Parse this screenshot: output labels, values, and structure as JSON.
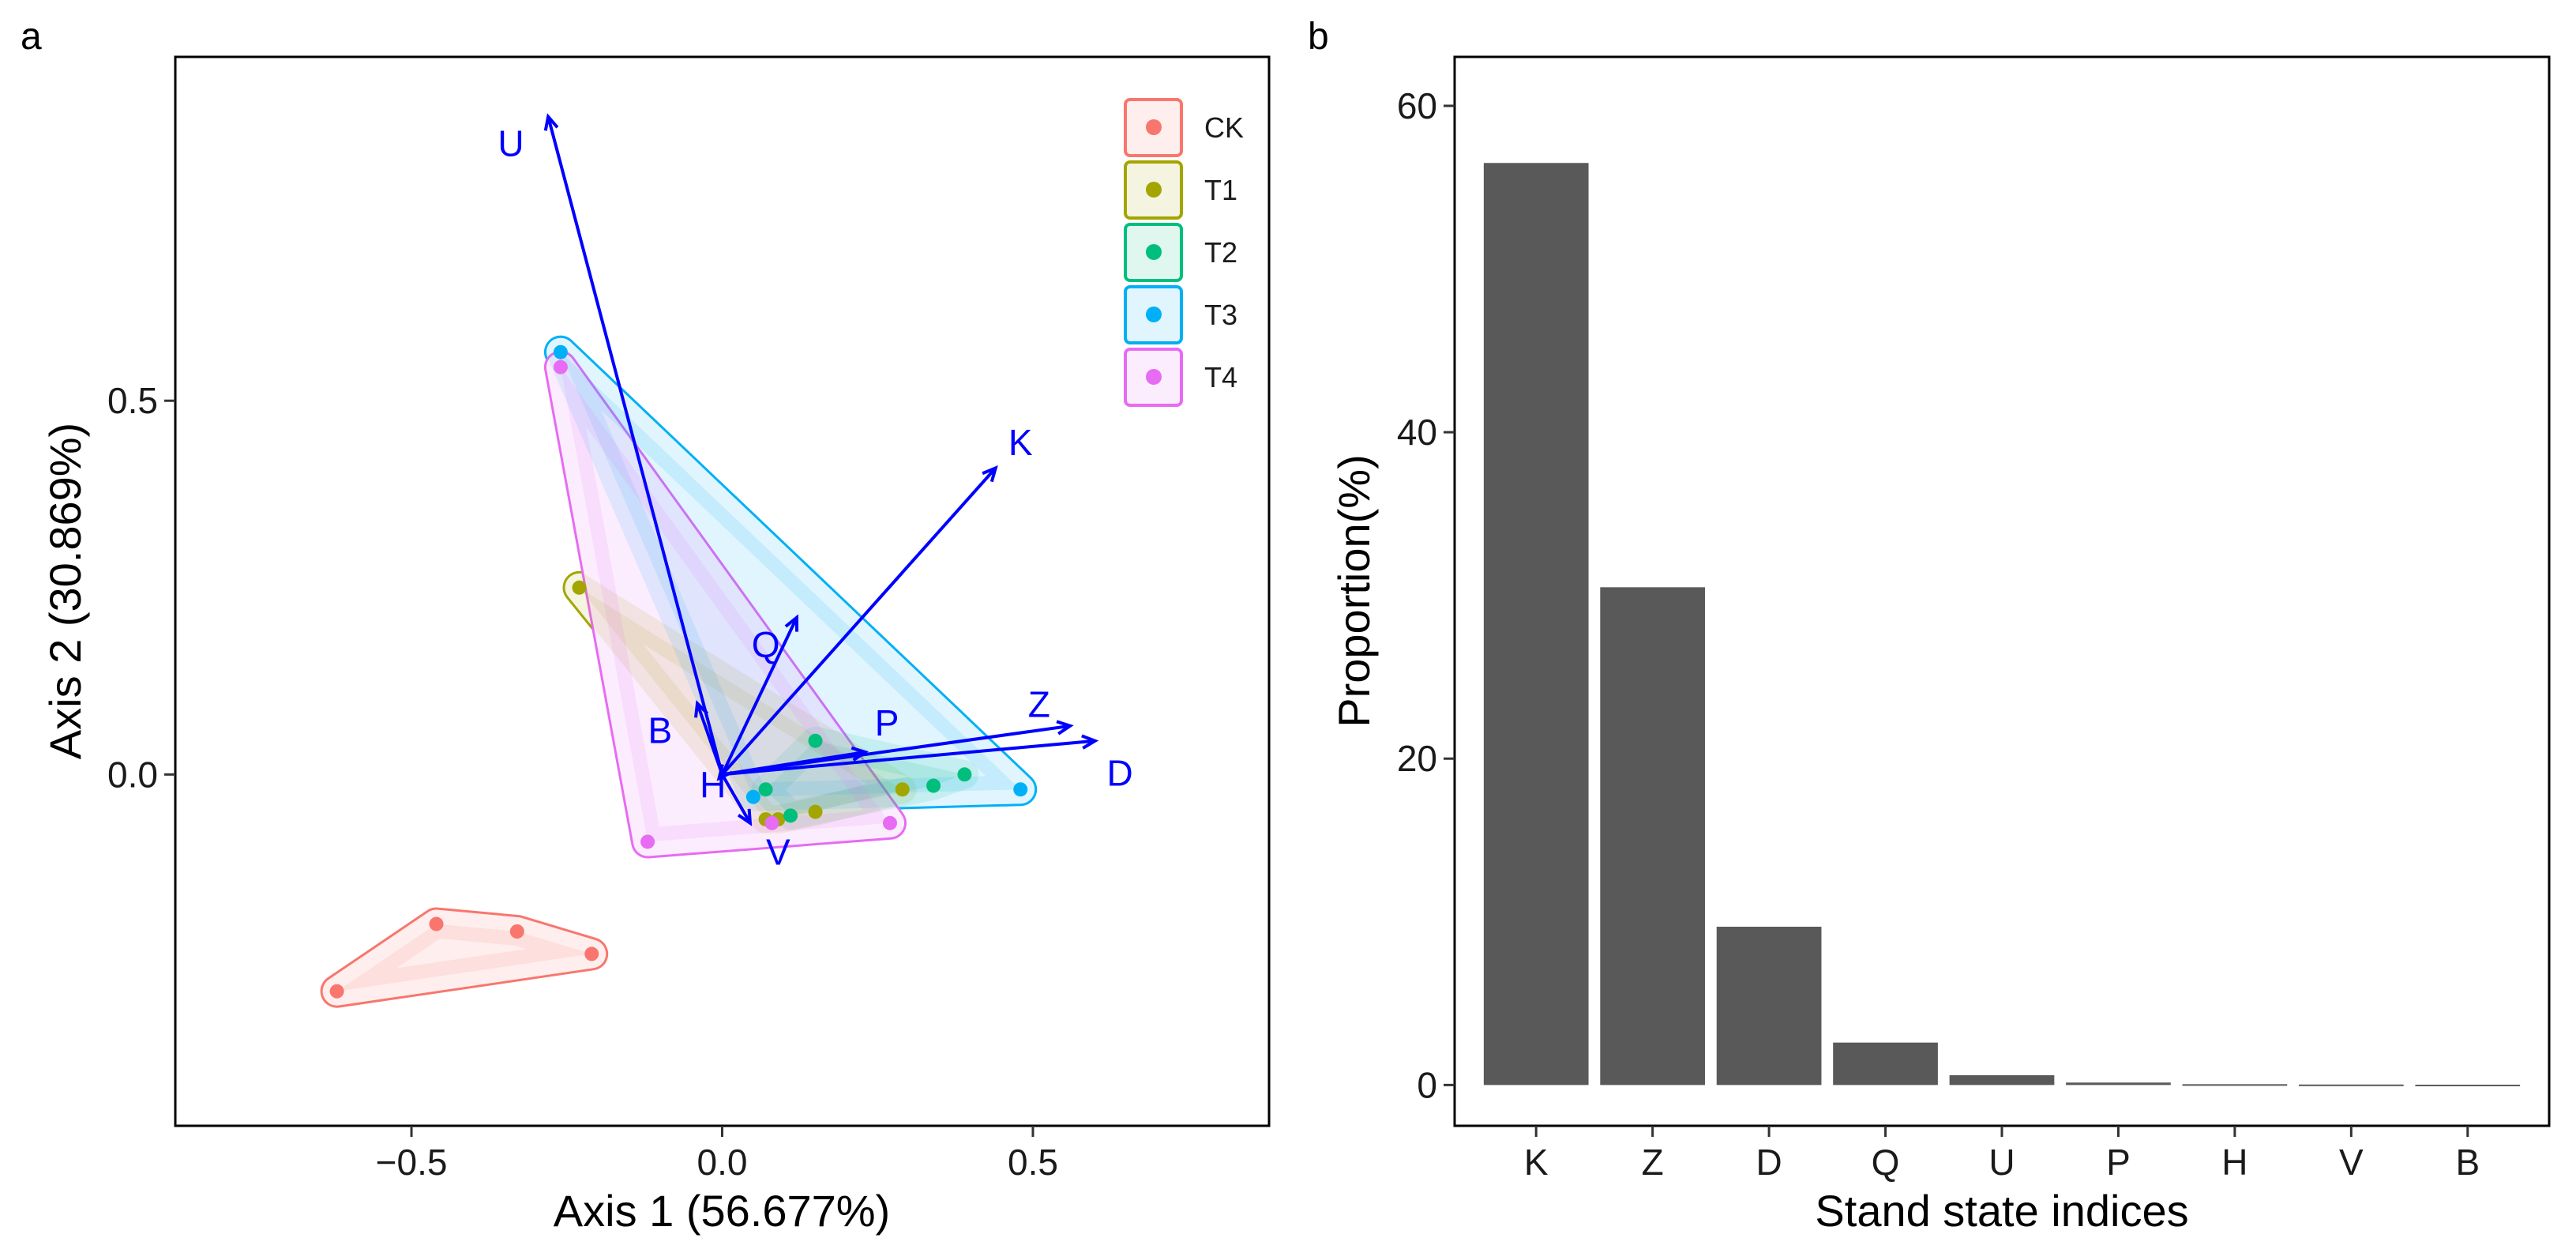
{
  "chart_data": [
    {
      "panel": "a",
      "type": "scatter",
      "xlabel": "Axis 1 (56.677%)",
      "ylabel": "Axis 2 (30.869%)",
      "xlim": [
        -0.88,
        0.88
      ],
      "ylim": [
        -0.47,
        0.96
      ],
      "xticks": [
        -0.5,
        0.0,
        0.5
      ],
      "xtick_labels": [
        "−0.5",
        "0.0",
        "0.5"
      ],
      "yticks": [
        0.0,
        0.5
      ],
      "ytick_labels": [
        "0.0",
        "0.5"
      ],
      "grid": false,
      "legend_position": "top-right",
      "groups": [
        {
          "name": "CK",
          "color": "#F8766D",
          "points": [
            [
              -0.62,
              -0.29
            ],
            [
              -0.46,
              -0.2
            ],
            [
              -0.33,
              -0.21
            ],
            [
              -0.21,
              -0.24
            ]
          ]
        },
        {
          "name": "T1",
          "color": "#A3A500",
          "points": [
            [
              -0.23,
              0.25
            ],
            [
              0.09,
              -0.06
            ],
            [
              0.15,
              -0.05
            ],
            [
              0.29,
              -0.02
            ],
            [
              0.07,
              -0.06
            ]
          ]
        },
        {
          "name": "T2",
          "color": "#00BF7D",
          "points": [
            [
              0.15,
              0.045
            ],
            [
              0.39,
              0.0
            ],
            [
              0.34,
              -0.015
            ],
            [
              0.07,
              -0.02
            ],
            [
              0.11,
              -0.055
            ]
          ]
        },
        {
          "name": "T3",
          "color": "#00B0F6",
          "points": [
            [
              -0.26,
              0.565
            ],
            [
              0.48,
              -0.02
            ],
            [
              0.05,
              -0.03
            ]
          ]
        },
        {
          "name": "T4",
          "color": "#E76BF3",
          "points": [
            [
              -0.26,
              0.545
            ],
            [
              -0.12,
              -0.09
            ],
            [
              0.27,
              -0.065
            ],
            [
              0.08,
              -0.065
            ]
          ]
        }
      ],
      "vectors_color": "#0000ff",
      "vectors": [
        {
          "name": "U",
          "x": -0.28,
          "y": 0.88,
          "label_x": -0.34,
          "label_y": 0.84
        },
        {
          "name": "K",
          "x": 0.44,
          "y": 0.41,
          "label_x": 0.48,
          "label_y": 0.44
        },
        {
          "name": "Q",
          "x": 0.12,
          "y": 0.21,
          "label_x": 0.07,
          "label_y": 0.17
        },
        {
          "name": "Z",
          "x": 0.56,
          "y": 0.065,
          "label_x": 0.51,
          "label_y": 0.09
        },
        {
          "name": "D",
          "x": 0.6,
          "y": 0.045,
          "label_x": 0.64,
          "label_y": -0.002
        },
        {
          "name": "P",
          "x": 0.23,
          "y": 0.03,
          "label_x": 0.265,
          "label_y": 0.065
        },
        {
          "name": "B",
          "x": -0.04,
          "y": 0.095,
          "label_x": -0.1,
          "label_y": 0.055
        },
        {
          "name": "H",
          "x": -0.005,
          "y": -0.005,
          "label_x": -0.015,
          "label_y": -0.018
        },
        {
          "name": "V",
          "x": 0.045,
          "y": -0.065,
          "label_x": 0.09,
          "label_y": -0.108
        }
      ]
    },
    {
      "panel": "b",
      "type": "bar",
      "xlabel": "Stand state indices",
      "ylabel": "Proportion(%)",
      "ylim": [
        -2.5,
        63
      ],
      "yticks": [
        0,
        20,
        40,
        60
      ],
      "ytick_labels": [
        "0",
        "20",
        "40",
        "60"
      ],
      "grid": false,
      "bar_color": "#595959",
      "categories": [
        "K",
        "Z",
        "D",
        "Q",
        "U",
        "P",
        "H",
        "V",
        "B"
      ],
      "values": [
        56.5,
        30.5,
        9.7,
        2.6,
        0.6,
        0.15,
        0.05,
        0.03,
        0.02
      ]
    }
  ]
}
